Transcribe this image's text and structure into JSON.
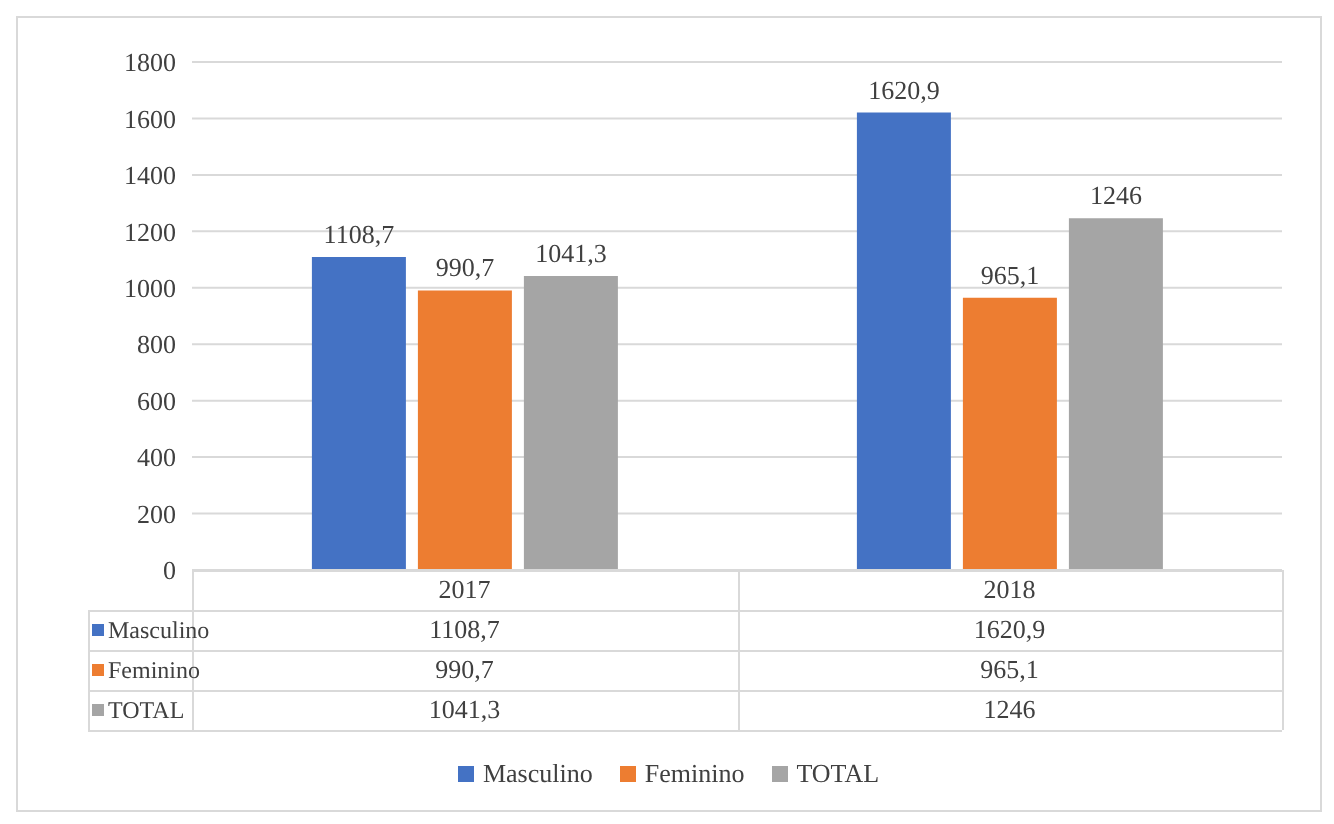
{
  "chart_data": {
    "type": "bar",
    "categories": [
      "2017",
      "2018"
    ],
    "series": [
      {
        "name": "Masculino",
        "color": "#4472c4",
        "values": [
          1108.7,
          1620.9
        ],
        "value_labels": [
          "1108,7",
          "1620,9"
        ]
      },
      {
        "name": "Feminino",
        "color": "#ed7d31",
        "values": [
          990.7,
          965.1
        ],
        "value_labels": [
          "990,7",
          "965,1"
        ]
      },
      {
        "name": "TOTAL",
        "color": "#a5a5a5",
        "values": [
          1041.3,
          1246
        ],
        "value_labels": [
          "1041,3",
          "1246"
        ]
      }
    ],
    "ylim": [
      0,
      1800
    ],
    "yticks": [
      0,
      200,
      400,
      600,
      800,
      1000,
      1200,
      1400,
      1600,
      1800
    ],
    "grid": "y",
    "legend": "bottom"
  }
}
